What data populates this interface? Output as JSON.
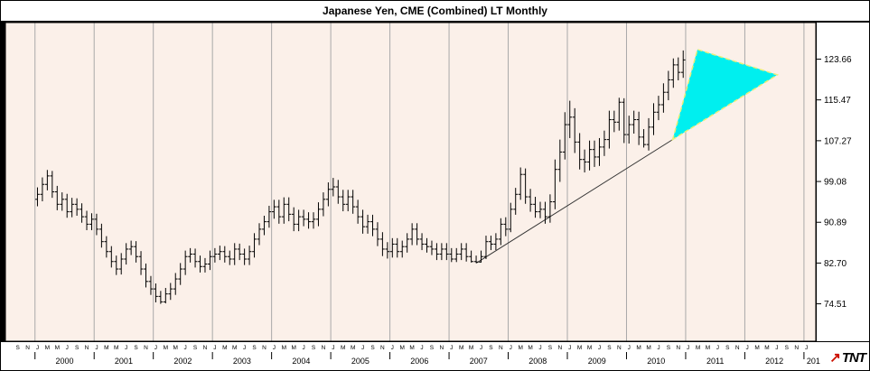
{
  "logo": {
    "text": "TNT",
    "arrow_glyph": "↗",
    "arrow_color": "#cc1100"
  },
  "chart_data": {
    "type": "ohlc-bar",
    "title": "Japanese Yen, CME (Combined) LT Monthly",
    "timeframe": "Monthly",
    "y_ticks": [
      123.66,
      115.47,
      107.27,
      99.08,
      90.89,
      82.7,
      74.51
    ],
    "ylim": [
      67.0,
      131.0
    ],
    "xlim": [
      1999.5,
      2013.2
    ],
    "x_year_labels": [
      "2000",
      "2001",
      "2002",
      "2003",
      "2004",
      "2005",
      "2006",
      "2007",
      "2008",
      "2009",
      "2010",
      "2011",
      "2012"
    ],
    "x_year_partial_label": "201",
    "month_tick_letters": [
      "J",
      "M",
      "M",
      "J",
      "S",
      "N"
    ],
    "bars_start_year": 2000,
    "bars_ohlc": [
      [
        95.5,
        97.9,
        94.1,
        96.5
      ],
      [
        96.5,
        99.9,
        95.1,
        98.5
      ],
      [
        98.5,
        101.4,
        97.3,
        100.2
      ],
      [
        100.2,
        101.2,
        95.8,
        97.0
      ],
      [
        97.0,
        98.2,
        93.3,
        94.5
      ],
      [
        94.5,
        96.9,
        93.2,
        95.5
      ],
      [
        95.5,
        96.6,
        91.8,
        93.0
      ],
      [
        93.0,
        95.8,
        91.9,
        94.5
      ],
      [
        94.5,
        95.7,
        92.2,
        93.5
      ],
      [
        93.5,
        94.7,
        90.8,
        92.0
      ],
      [
        92.0,
        93.2,
        89.3,
        90.5
      ],
      [
        90.5,
        92.7,
        89.3,
        91.5
      ],
      [
        91.5,
        92.6,
        88.3,
        89.5
      ],
      [
        89.5,
        90.6,
        85.8,
        87.0
      ],
      [
        87.0,
        88.1,
        83.8,
        85.0
      ],
      [
        85.0,
        86.1,
        81.8,
        83.0
      ],
      [
        83.0,
        84.2,
        80.3,
        81.5
      ],
      [
        81.5,
        84.7,
        80.4,
        83.5
      ],
      [
        83.5,
        86.7,
        82.4,
        85.5
      ],
      [
        85.5,
        87.2,
        84.3,
        86.0
      ],
      [
        86.0,
        87.1,
        82.8,
        84.0
      ],
      [
        84.0,
        85.1,
        80.3,
        81.5
      ],
      [
        81.5,
        82.6,
        77.8,
        79.0
      ],
      [
        79.0,
        80.1,
        76.3,
        77.5
      ],
      [
        77.5,
        78.6,
        74.8,
        76.0
      ],
      [
        76.0,
        77.1,
        74.5,
        74.9
      ],
      [
        74.9,
        77.7,
        74.6,
        76.5
      ],
      [
        76.5,
        78.7,
        75.3,
        77.5
      ],
      [
        77.5,
        80.7,
        76.3,
        79.5
      ],
      [
        79.5,
        82.7,
        78.3,
        81.5
      ],
      [
        81.5,
        85.2,
        80.3,
        84.0
      ],
      [
        84.0,
        85.7,
        82.8,
        84.5
      ],
      [
        84.5,
        85.6,
        81.8,
        83.0
      ],
      [
        83.0,
        84.2,
        80.8,
        82.0
      ],
      [
        82.0,
        83.7,
        80.8,
        82.5
      ],
      [
        82.5,
        85.2,
        81.3,
        84.0
      ],
      [
        84.0,
        85.7,
        82.8,
        84.5
      ],
      [
        84.5,
        86.2,
        83.3,
        85.0
      ],
      [
        85.0,
        86.1,
        82.8,
        84.0
      ],
      [
        84.0,
        85.2,
        82.3,
        83.5
      ],
      [
        83.5,
        86.7,
        82.3,
        85.5
      ],
      [
        85.5,
        86.6,
        83.3,
        84.5
      ],
      [
        84.5,
        85.6,
        82.3,
        83.5
      ],
      [
        83.5,
        86.2,
        82.3,
        85.0
      ],
      [
        85.0,
        88.7,
        83.8,
        87.5
      ],
      [
        87.5,
        90.7,
        86.3,
        89.5
      ],
      [
        89.5,
        92.2,
        88.3,
        91.0
      ],
      [
        91.0,
        94.2,
        89.8,
        93.0
      ],
      [
        93.0,
        95.4,
        91.6,
        94.0
      ],
      [
        94.0,
        95.4,
        90.6,
        92.0
      ],
      [
        92.0,
        95.9,
        90.6,
        94.5
      ],
      [
        94.5,
        95.9,
        91.1,
        92.5
      ],
      [
        92.5,
        93.9,
        89.1,
        90.5
      ],
      [
        90.5,
        93.4,
        89.1,
        92.0
      ],
      [
        92.0,
        93.4,
        90.1,
        91.5
      ],
      [
        91.5,
        92.9,
        89.6,
        91.0
      ],
      [
        91.0,
        92.9,
        89.6,
        91.5
      ],
      [
        91.5,
        94.9,
        90.1,
        93.5
      ],
      [
        93.5,
        96.9,
        92.1,
        95.5
      ],
      [
        95.5,
        98.9,
        94.1,
        97.5
      ],
      [
        97.5,
        99.8,
        96.1,
        98.0
      ],
      [
        98.0,
        99.4,
        94.6,
        96.0
      ],
      [
        96.0,
        97.4,
        93.1,
        94.5
      ],
      [
        94.5,
        97.4,
        93.1,
        96.0
      ],
      [
        96.0,
        97.4,
        92.6,
        94.0
      ],
      [
        94.0,
        95.4,
        90.6,
        92.0
      ],
      [
        92.0,
        93.4,
        88.6,
        90.0
      ],
      [
        90.0,
        92.4,
        88.6,
        91.0
      ],
      [
        91.0,
        92.4,
        88.1,
        89.5
      ],
      [
        89.5,
        90.9,
        86.1,
        87.5
      ],
      [
        87.5,
        88.9,
        84.1,
        85.5
      ],
      [
        85.5,
        86.9,
        83.6,
        85.0
      ],
      [
        85.0,
        87.7,
        83.8,
        86.5
      ],
      [
        86.5,
        87.7,
        83.8,
        85.0
      ],
      [
        85.0,
        87.2,
        83.8,
        86.0
      ],
      [
        86.0,
        88.7,
        84.8,
        87.5
      ],
      [
        87.5,
        90.7,
        86.3,
        89.5
      ],
      [
        89.5,
        90.7,
        86.3,
        87.5
      ],
      [
        87.5,
        88.7,
        85.3,
        86.5
      ],
      [
        86.5,
        87.7,
        84.8,
        86.0
      ],
      [
        86.0,
        87.2,
        84.3,
        85.5
      ],
      [
        85.5,
        86.7,
        83.3,
        84.5
      ],
      [
        84.5,
        86.7,
        83.3,
        85.5
      ],
      [
        85.5,
        86.7,
        83.3,
        84.5
      ],
      [
        84.5,
        85.7,
        82.9,
        83.5
      ],
      [
        83.5,
        85.7,
        82.9,
        84.5
      ],
      [
        84.5,
        86.7,
        83.3,
        85.5
      ],
      [
        85.5,
        86.7,
        83.0,
        84.0
      ],
      [
        84.0,
        85.2,
        82.8,
        83.0
      ],
      [
        83.0,
        84.2,
        82.7,
        82.9
      ],
      [
        82.9,
        85.2,
        82.8,
        84.0
      ],
      [
        84.0,
        88.2,
        83.5,
        87.0
      ],
      [
        87.0,
        88.2,
        85.3,
        86.5
      ],
      [
        86.5,
        88.7,
        85.3,
        87.5
      ],
      [
        87.5,
        91.7,
        86.3,
        90.5
      ],
      [
        90.5,
        91.9,
        88.1,
        89.5
      ],
      [
        89.5,
        94.8,
        88.9,
        93.5
      ],
      [
        93.5,
        97.8,
        92.4,
        96.5
      ],
      [
        96.5,
        101.9,
        95.4,
        100.5
      ],
      [
        100.5,
        101.7,
        94.6,
        96.0
      ],
      [
        96.0,
        97.6,
        93.0,
        94.5
      ],
      [
        94.5,
        96.0,
        91.8,
        93.0
      ],
      [
        93.0,
        95.0,
        91.7,
        93.5
      ],
      [
        93.5,
        95.0,
        90.6,
        92.0
      ],
      [
        92.0,
        96.5,
        90.8,
        95.0
      ],
      [
        95.0,
        103.5,
        93.5,
        101.5
      ],
      [
        101.5,
        107.5,
        99.0,
        105.0
      ],
      [
        105.0,
        113.0,
        103.5,
        110.5
      ],
      [
        110.5,
        115.3,
        107.8,
        112.0
      ],
      [
        112.0,
        113.8,
        104.8,
        107.0
      ],
      [
        107.0,
        108.8,
        101.5,
        103.5
      ],
      [
        103.5,
        105.5,
        100.9,
        103.0
      ],
      [
        103.0,
        107.3,
        101.3,
        105.5
      ],
      [
        105.5,
        107.3,
        102.0,
        104.0
      ],
      [
        104.0,
        107.8,
        102.2,
        106.0
      ],
      [
        106.0,
        109.3,
        104.2,
        107.5
      ],
      [
        107.5,
        113.3,
        105.7,
        111.5
      ],
      [
        111.5,
        113.3,
        109.0,
        111.0
      ],
      [
        111.0,
        115.9,
        109.3,
        115.0
      ],
      [
        115.0,
        115.8,
        106.8,
        108.5
      ],
      [
        108.5,
        112.3,
        106.7,
        110.5
      ],
      [
        110.5,
        113.3,
        108.7,
        111.5
      ],
      [
        111.5,
        113.1,
        106.4,
        108.0
      ],
      [
        108.0,
        109.6,
        105.9,
        106.5
      ],
      [
        106.5,
        111.8,
        105.3,
        110.0
      ],
      [
        110.0,
        114.8,
        108.4,
        113.0
      ],
      [
        113.0,
        116.3,
        111.4,
        114.5
      ],
      [
        114.5,
        118.8,
        112.9,
        117.0
      ],
      [
        117.0,
        121.3,
        115.4,
        119.5
      ],
      [
        119.5,
        123.8,
        117.9,
        122.5
      ],
      [
        122.5,
        124.0,
        119.4,
        121.0
      ],
      [
        121.0,
        125.4,
        119.9,
        123.5
      ]
    ],
    "trendline": {
      "from": [
        2007.46,
        82.7
      ],
      "to": [
        2010.78,
        107.5
      ],
      "color": "#333333"
    },
    "triangle": {
      "points": [
        [
          2010.78,
          107.5
        ],
        [
          2011.2,
          125.6
        ],
        [
          2012.55,
          120.5
        ]
      ],
      "fill": "#00efef",
      "stroke": "#e9ef7a"
    },
    "colors": {
      "plot_bg": "#fbf0e9",
      "grid": "#a9a9a9",
      "bar": "#000000",
      "axis_bg": "#ffffff",
      "frame": "#000000",
      "text": "#000000"
    },
    "legend_position": "none",
    "grid": "vertical-yearly"
  }
}
